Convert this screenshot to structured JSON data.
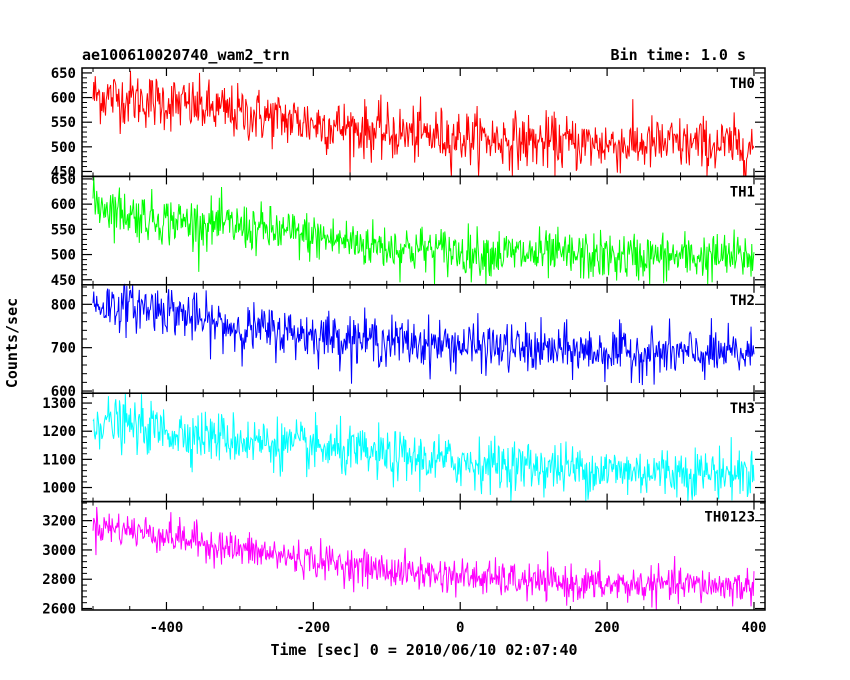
{
  "chart_data": {
    "type": "line",
    "title": "ae100610020740_wam2_trn",
    "subtitle": "Bin time: 1.0 s",
    "xlabel": "Time [sec] 0 = 2010/06/10 02:07:40",
    "ylabel": "Counts/sec",
    "xlim": [
      -515,
      415
    ],
    "x_ticks": [
      -400,
      -200,
      0,
      200,
      400
    ],
    "x_start": -500,
    "x_end": 400,
    "bin": 1.0,
    "grid": false,
    "panels": [
      {
        "name": "TH0",
        "color": "#ff0000",
        "ylim": [
          440,
          660
        ],
        "y_ticks": [
          450,
          500,
          550,
          600,
          650
        ],
        "trend": [
          [
            -500,
            605
          ],
          [
            -400,
            590
          ],
          [
            -300,
            568
          ],
          [
            -200,
            548
          ],
          [
            -100,
            528
          ],
          [
            0,
            520
          ],
          [
            100,
            510
          ],
          [
            200,
            505
          ],
          [
            300,
            505
          ],
          [
            400,
            500
          ]
        ],
        "noise": 28
      },
      {
        "name": "TH1",
        "color": "#00ff00",
        "ylim": [
          440,
          655
        ],
        "y_ticks": [
          450,
          500,
          550,
          600,
          650
        ],
        "trend": [
          [
            -500,
            605
          ],
          [
            -450,
            580
          ],
          [
            -400,
            568
          ],
          [
            -300,
            555
          ],
          [
            -200,
            535
          ],
          [
            -100,
            515
          ],
          [
            0,
            505
          ],
          [
            100,
            500
          ],
          [
            200,
            495
          ],
          [
            300,
            495
          ],
          [
            400,
            495
          ]
        ],
        "noise": 24
      },
      {
        "name": "TH2",
        "color": "#0000ff",
        "ylim": [
          595,
          845
        ],
        "y_ticks": [
          600,
          700,
          800
        ],
        "trend": [
          [
            -500,
            800
          ],
          [
            -400,
            790
          ],
          [
            -350,
            760
          ],
          [
            -300,
            745
          ],
          [
            -200,
            730
          ],
          [
            -100,
            715
          ],
          [
            0,
            705
          ],
          [
            100,
            695
          ],
          [
            200,
            690
          ],
          [
            300,
            685
          ],
          [
            400,
            685
          ]
        ],
        "noise": 28
      },
      {
        "name": "TH3",
        "color": "#00ffff",
        "ylim": [
          950,
          1335
        ],
        "y_ticks": [
          1000,
          1100,
          1200,
          1300
        ],
        "trend": [
          [
            -500,
            1240
          ],
          [
            -400,
            1200
          ],
          [
            -300,
            1170
          ],
          [
            -200,
            1140
          ],
          [
            -100,
            1110
          ],
          [
            0,
            1090
          ],
          [
            100,
            1075
          ],
          [
            200,
            1060
          ],
          [
            300,
            1055
          ],
          [
            400,
            1050
          ]
        ],
        "noise": 45
      },
      {
        "name": "TH0123",
        "color": "#ff00ff",
        "ylim": [
          2590,
          3330
        ],
        "y_ticks": [
          2600,
          2800,
          3000,
          3200
        ],
        "trend": [
          [
            -500,
            3170
          ],
          [
            -400,
            3100
          ],
          [
            -300,
            3000
          ],
          [
            -200,
            2930
          ],
          [
            -100,
            2860
          ],
          [
            0,
            2820
          ],
          [
            100,
            2780
          ],
          [
            200,
            2760
          ],
          [
            300,
            2760
          ],
          [
            400,
            2750
          ]
        ],
        "noise": 60
      }
    ]
  }
}
